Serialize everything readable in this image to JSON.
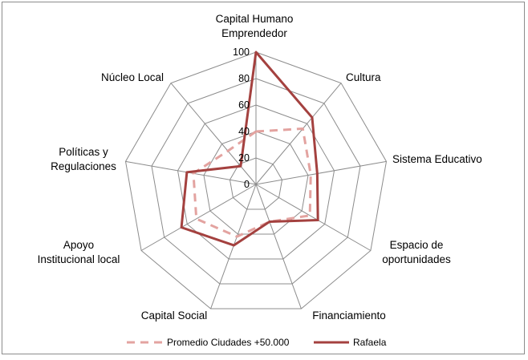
{
  "chart_data": {
    "type": "radar",
    "axes": [
      [
        "Capital Humano",
        "Emprendedor"
      ],
      [
        "Cultura"
      ],
      [
        "Sistema Educativo"
      ],
      [
        "Espacio de",
        "oportunidades"
      ],
      [
        "Financiamiento"
      ],
      [
        "Capital Social"
      ],
      [
        "Apoyo",
        "Institucional local"
      ],
      [
        "Políticas y",
        "Regulaciones"
      ],
      [
        "Núcleo Local"
      ]
    ],
    "rlim": [
      0,
      100
    ],
    "ticks": [
      "0",
      "20",
      "40",
      "60",
      "80",
      "100"
    ],
    "series": [
      {
        "name": "Promedio Ciudades +50.000",
        "color": "#e3a3a0",
        "style": "dashed",
        "values": [
          40,
          55,
          42,
          47,
          30,
          42,
          52,
          48,
          33
        ]
      },
      {
        "name": "Rafaela",
        "color": "#a4413f",
        "style": "solid",
        "values": [
          100,
          66,
          47,
          54,
          30,
          49,
          65,
          53,
          18
        ]
      }
    ],
    "legend": "bottom"
  }
}
